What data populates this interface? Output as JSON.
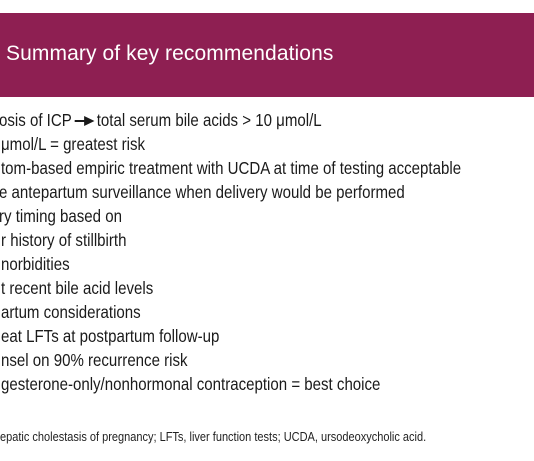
{
  "header": {
    "title": "Summary of key recommendations",
    "band_color": "#8e1f52"
  },
  "recommendations": [
    {
      "before_arrow": "osis of ICP",
      "after_arrow": "total serum bile acids > 10 μmol/L",
      "arrow_icon": "right-arrow-icon"
    },
    {
      "text": "μmol/L = greatest risk"
    },
    {
      "text": "tom-based empiric treatment with UCDA at time of testing acceptable"
    },
    {
      "text": "e antepartum surveillance when delivery would be performed"
    },
    {
      "text": "ry timing based on"
    },
    {
      "text": "r history of stillbirth"
    },
    {
      "text": "norbidities"
    },
    {
      "text": "t recent bile acid levels"
    },
    {
      "text": "artum considerations"
    },
    {
      "text": "eat LFTs at postpartum follow-up"
    },
    {
      "text": "nsel on 90% recurrence risk"
    },
    {
      "text": "gesterone-only/nonhormonal contraception = best choice"
    }
  ],
  "footnote": "epatic cholestasis of pregnancy; LFTs, liver function tests; UCDA, ursodeoxycholic acid."
}
